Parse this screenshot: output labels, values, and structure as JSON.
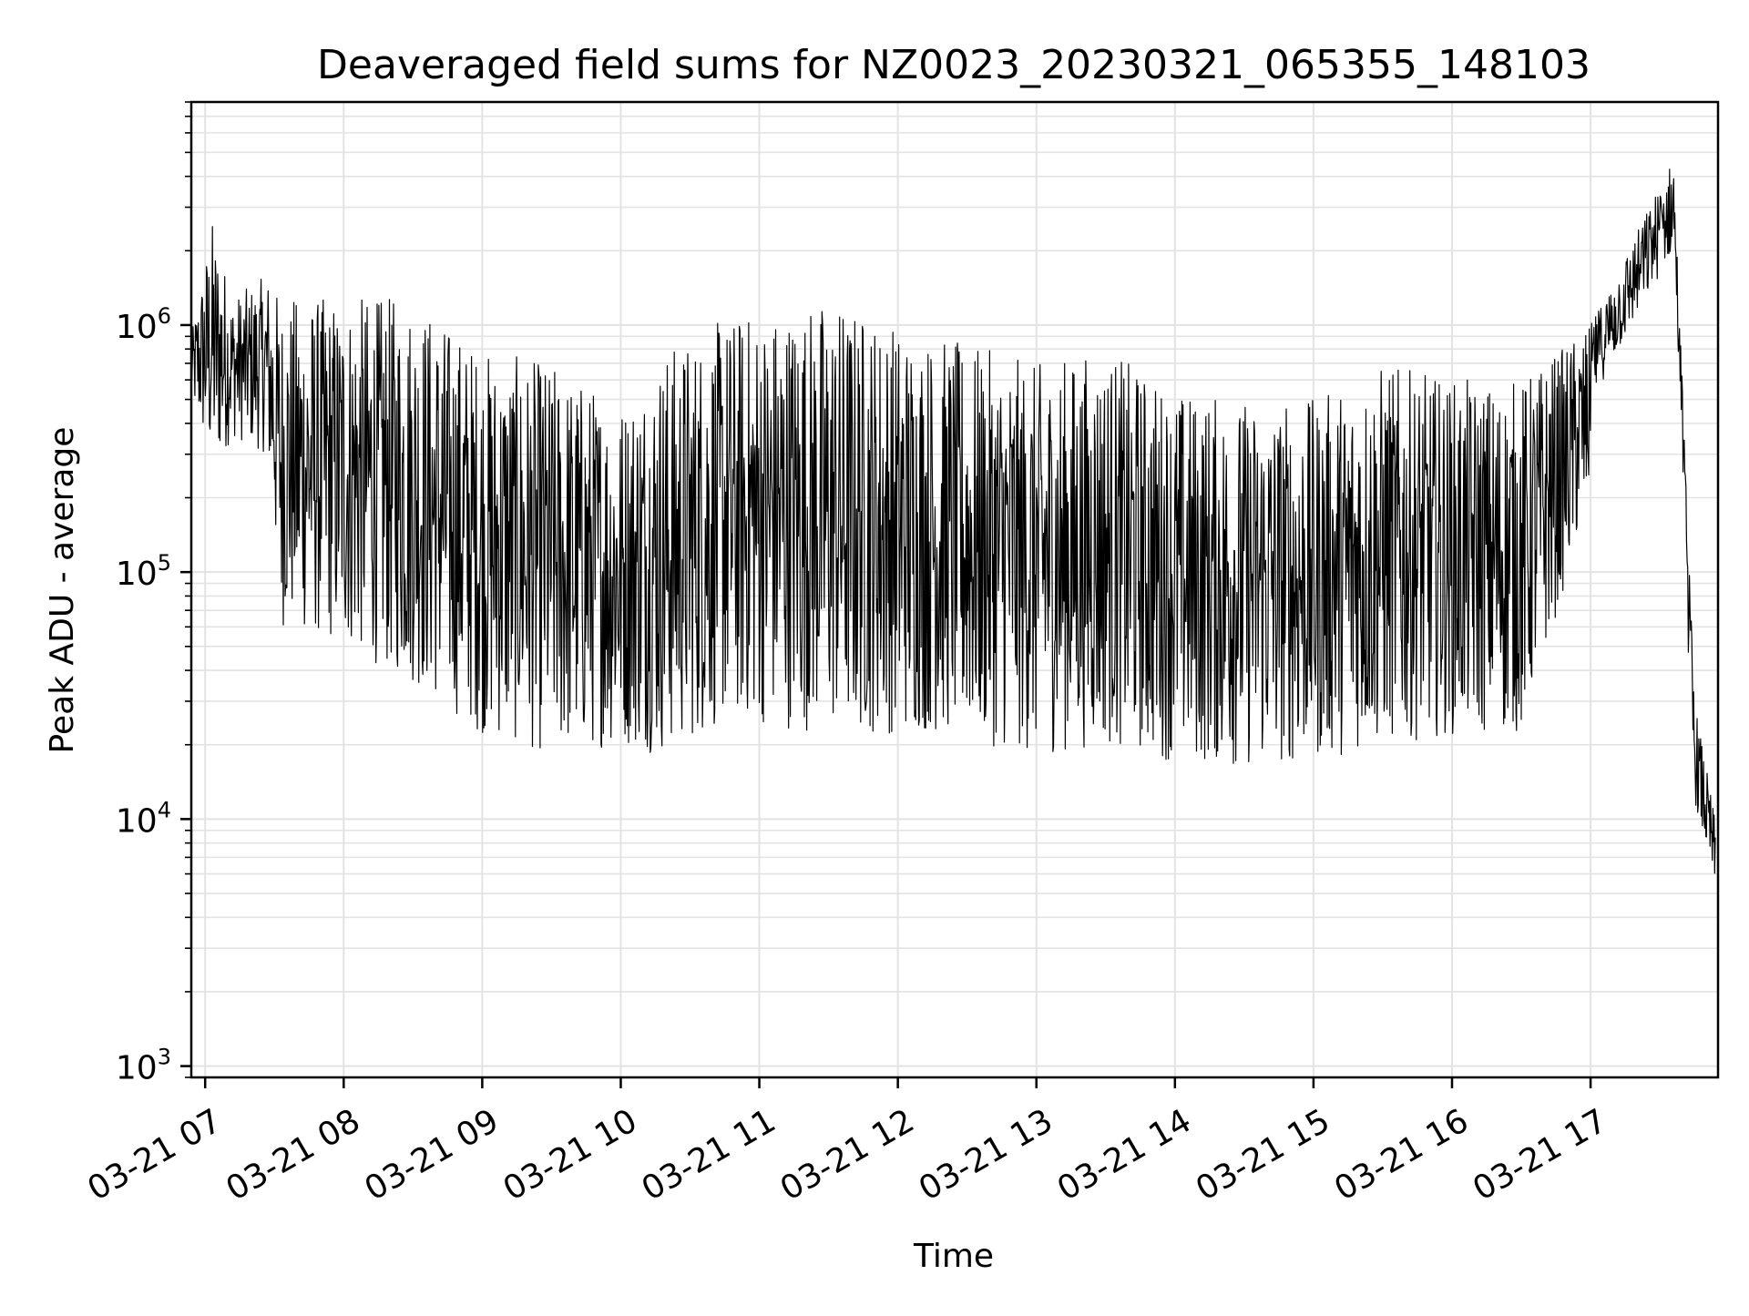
{
  "chart_data": {
    "type": "line",
    "title": "Deaveraged field sums for NZ0023_20230321_065355_148103",
    "xlabel": "Time",
    "ylabel": "Peak ADU - average",
    "yscale": "log",
    "ylim": [
      900,
      8000000
    ],
    "xlim": [
      "03-21 06:54",
      "03-21 17:55"
    ],
    "x_ticks": [
      "03-21 07",
      "03-21 08",
      "03-21 09",
      "03-21 10",
      "03-21 11",
      "03-21 12",
      "03-21 13",
      "03-21 14",
      "03-21 15",
      "03-21 16",
      "03-21 17"
    ],
    "x_tick_hours": [
      7,
      8,
      9,
      10,
      11,
      12,
      13,
      14,
      15,
      16,
      17
    ],
    "y_ticks": [
      {
        "value": 1000,
        "base": "10",
        "exp": "3"
      },
      {
        "value": 10000,
        "base": "10",
        "exp": "4"
      },
      {
        "value": 100000,
        "base": "10",
        "exp": "5"
      },
      {
        "value": 1000000,
        "base": "10",
        "exp": "6"
      }
    ],
    "grid": true,
    "series_color": "#000000",
    "series": [
      {
        "name": "",
        "x_unit": "hours (03-21)",
        "envelope": [
          {
            "h": 6.9,
            "low": 500000,
            "high": 900000
          },
          {
            "h": 7.05,
            "low": 250000,
            "high": 2700000
          },
          {
            "h": 7.2,
            "low": 350000,
            "high": 1300000
          },
          {
            "h": 7.45,
            "low": 300000,
            "high": 1600000
          },
          {
            "h": 7.55,
            "low": 60000,
            "high": 1300000
          },
          {
            "h": 8.0,
            "low": 50000,
            "high": 1300000
          },
          {
            "h": 8.5,
            "low": 35000,
            "high": 1300000
          },
          {
            "h": 9.0,
            "low": 22000,
            "high": 800000
          },
          {
            "h": 9.5,
            "low": 18000,
            "high": 700000
          },
          {
            "h": 10.0,
            "low": 20000,
            "high": 500000
          },
          {
            "h": 10.3,
            "low": 18000,
            "high": 800000
          },
          {
            "h": 10.8,
            "low": 25000,
            "high": 1100000
          },
          {
            "h": 11.5,
            "low": 22000,
            "high": 1300000
          },
          {
            "h": 12.3,
            "low": 22000,
            "high": 900000
          },
          {
            "h": 13.0,
            "low": 18000,
            "high": 700000
          },
          {
            "h": 13.5,
            "low": 20000,
            "high": 800000
          },
          {
            "h": 14.0,
            "low": 17000,
            "high": 550000
          },
          {
            "h": 14.5,
            "low": 16000,
            "high": 500000
          },
          {
            "h": 15.0,
            "low": 17000,
            "high": 500000
          },
          {
            "h": 15.5,
            "low": 20000,
            "high": 700000
          },
          {
            "h": 16.0,
            "low": 22000,
            "high": 600000
          },
          {
            "h": 16.5,
            "low": 22000,
            "high": 600000
          },
          {
            "h": 17.0,
            "low": 200000,
            "high": 1000000
          },
          {
            "h": 17.6,
            "low": 700000,
            "high": 4800000
          },
          {
            "h": 17.75,
            "low": 12000,
            "high": 30000
          },
          {
            "h": 17.9,
            "low": 5000,
            "high": 10000
          }
        ]
      }
    ]
  }
}
